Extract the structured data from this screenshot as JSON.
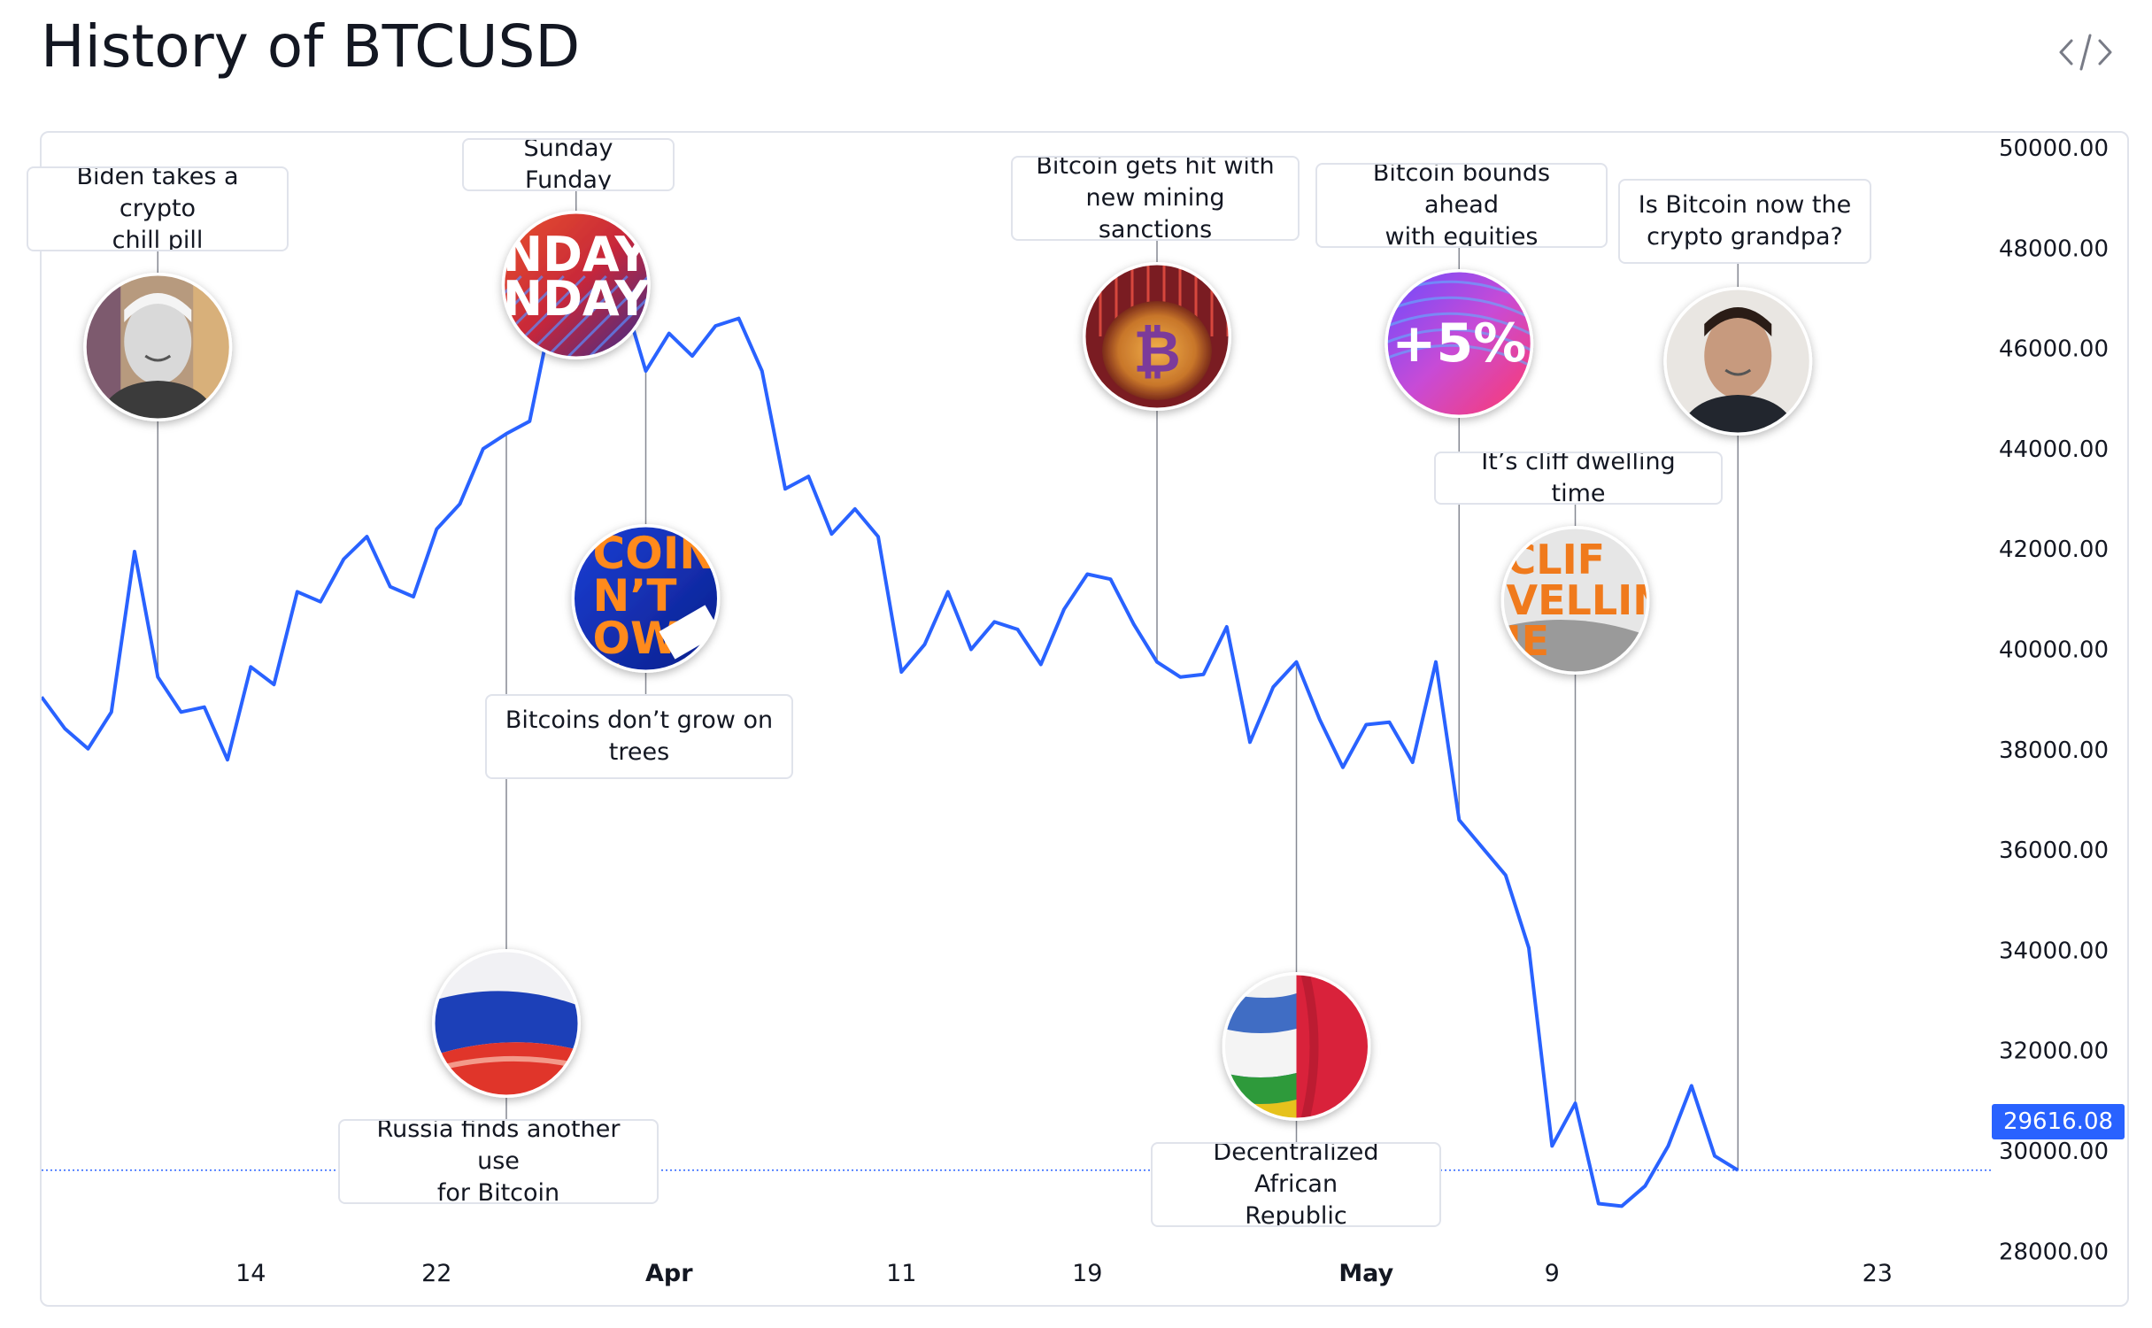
{
  "title": "History of BTCUSD",
  "embed_icon": "code-embed-icon",
  "colors": {
    "line": "#2962ff",
    "badge": "#2962ff",
    "connector": "#868993",
    "border": "#e0e3eb"
  },
  "last_price_label": "29616.08",
  "chart_data": {
    "type": "line",
    "title": "History of BTCUSD",
    "x_start": "2022-03-05",
    "x_end": "2022-05-28",
    "ylim": [
      27000,
      50300
    ],
    "grid": false,
    "last_price": 29616.08,
    "y_ticks": [
      "50000.00",
      "48000.00",
      "46000.00",
      "44000.00",
      "42000.00",
      "40000.00",
      "38000.00",
      "36000.00",
      "34000.00",
      "32000.00",
      "30000.00",
      "28000.00"
    ],
    "x_ticks": [
      {
        "date": "2022-03-14",
        "label": "14",
        "bold": false
      },
      {
        "date": "2022-03-22",
        "label": "22",
        "bold": false
      },
      {
        "date": "2022-04-01",
        "label": "Apr",
        "bold": true
      },
      {
        "date": "2022-04-11",
        "label": "11",
        "bold": false
      },
      {
        "date": "2022-04-19",
        "label": "19",
        "bold": false
      },
      {
        "date": "2022-05-01",
        "label": "May",
        "bold": true
      },
      {
        "date": "2022-05-09",
        "label": "9",
        "bold": false
      },
      {
        "date": "2022-05-23",
        "label": "23",
        "bold": false
      }
    ],
    "series": [
      {
        "points": [
          [
            "2022-03-05",
            39050
          ],
          [
            "2022-03-06",
            38420
          ],
          [
            "2022-03-07",
            38020
          ],
          [
            "2022-03-08",
            38750
          ],
          [
            "2022-03-09",
            41950
          ],
          [
            "2022-03-10",
            39450
          ],
          [
            "2022-03-11",
            38750
          ],
          [
            "2022-03-12",
            38850
          ],
          [
            "2022-03-13",
            37800
          ],
          [
            "2022-03-14",
            39650
          ],
          [
            "2022-03-15",
            39300
          ],
          [
            "2022-03-16",
            41150
          ],
          [
            "2022-03-17",
            40950
          ],
          [
            "2022-03-18",
            41800
          ],
          [
            "2022-03-19",
            42250
          ],
          [
            "2022-03-20",
            41250
          ],
          [
            "2022-03-21",
            41050
          ],
          [
            "2022-03-22",
            42400
          ],
          [
            "2022-03-23",
            42900
          ],
          [
            "2022-03-24",
            44000
          ],
          [
            "2022-03-25",
            44300
          ],
          [
            "2022-03-26",
            44550
          ],
          [
            "2022-03-27",
            46800
          ],
          [
            "2022-03-28",
            47200
          ],
          [
            "2022-03-29",
            47450
          ],
          [
            "2022-03-30",
            47100
          ],
          [
            "2022-03-31",
            45550
          ],
          [
            "2022-04-01",
            46300
          ],
          [
            "2022-04-02",
            45850
          ],
          [
            "2022-04-03",
            46450
          ],
          [
            "2022-04-04",
            46600
          ],
          [
            "2022-04-05",
            45550
          ],
          [
            "2022-04-06",
            43200
          ],
          [
            "2022-04-07",
            43450
          ],
          [
            "2022-04-08",
            42300
          ],
          [
            "2022-04-09",
            42800
          ],
          [
            "2022-04-10",
            42250
          ],
          [
            "2022-04-11",
            39550
          ],
          [
            "2022-04-12",
            40100
          ],
          [
            "2022-04-13",
            41150
          ],
          [
            "2022-04-14",
            40000
          ],
          [
            "2022-04-15",
            40550
          ],
          [
            "2022-04-16",
            40400
          ],
          [
            "2022-04-17",
            39700
          ],
          [
            "2022-04-18",
            40800
          ],
          [
            "2022-04-19",
            41500
          ],
          [
            "2022-04-20",
            41400
          ],
          [
            "2022-04-21",
            40500
          ],
          [
            "2022-04-22",
            39750
          ],
          [
            "2022-04-23",
            39450
          ],
          [
            "2022-04-24",
            39500
          ],
          [
            "2022-04-25",
            40450
          ],
          [
            "2022-04-26",
            38150
          ],
          [
            "2022-04-27",
            39250
          ],
          [
            "2022-04-28",
            39750
          ],
          [
            "2022-04-29",
            38600
          ],
          [
            "2022-04-30",
            37650
          ],
          [
            "2022-05-01",
            38500
          ],
          [
            "2022-05-02",
            38550
          ],
          [
            "2022-05-03",
            37750
          ],
          [
            "2022-05-04",
            39750
          ],
          [
            "2022-05-05",
            36600
          ],
          [
            "2022-05-06",
            36050
          ],
          [
            "2022-05-07",
            35500
          ],
          [
            "2022-05-08",
            34050
          ],
          [
            "2022-05-09",
            30100
          ],
          [
            "2022-05-10",
            30950
          ],
          [
            "2022-05-11",
            28950
          ],
          [
            "2022-05-12",
            28900
          ],
          [
            "2022-05-13",
            29300
          ],
          [
            "2022-05-14",
            30100
          ],
          [
            "2022-05-15",
            31300
          ],
          [
            "2022-05-16",
            29900
          ],
          [
            "2022-05-17",
            29616.08
          ]
        ]
      }
    ],
    "events": [
      {
        "id": "biden",
        "date": "2022-03-10",
        "text": "Biden takes a crypto\nchill pill",
        "position": "above",
        "image": "biden-portrait-icon"
      },
      {
        "id": "russia",
        "date": "2022-03-25",
        "text": "Russia finds another use\nfor Bitcoin",
        "position": "below",
        "image": "russia-flag-icon"
      },
      {
        "id": "sunday",
        "date": "2022-03-28",
        "text": "Sunday Funday",
        "position": "above",
        "image": "sunday-funday-icon"
      },
      {
        "id": "trees",
        "date": "2022-03-31",
        "text": "Bitcoins don’t grow on\ntrees",
        "position": "below",
        "image": "bitcoin-trees-icon"
      },
      {
        "id": "mining",
        "date": "2022-04-22",
        "text": "Bitcoin gets hit with\nnew mining sanctions",
        "position": "above",
        "image": "bitcoin-coin-icon"
      },
      {
        "id": "car",
        "date": "2022-04-28",
        "text": "Decentralized African\nRepublic",
        "position": "below",
        "image": "car-flag-icon"
      },
      {
        "id": "equities",
        "date": "2022-05-05",
        "text": "Bitcoin bounds ahead\nwith equities",
        "position": "above",
        "image": "plus-five-percent-icon"
      },
      {
        "id": "cliff",
        "date": "2022-05-10",
        "text": "It’s cliff dwelling time",
        "position": "above",
        "image": "cliff-dwelling-icon"
      },
      {
        "id": "grandpa",
        "date": "2022-05-17",
        "text": "Is Bitcoin now the\ncrypto grandpa?",
        "position": "above",
        "image": "grandpa-portrait-icon"
      }
    ]
  }
}
